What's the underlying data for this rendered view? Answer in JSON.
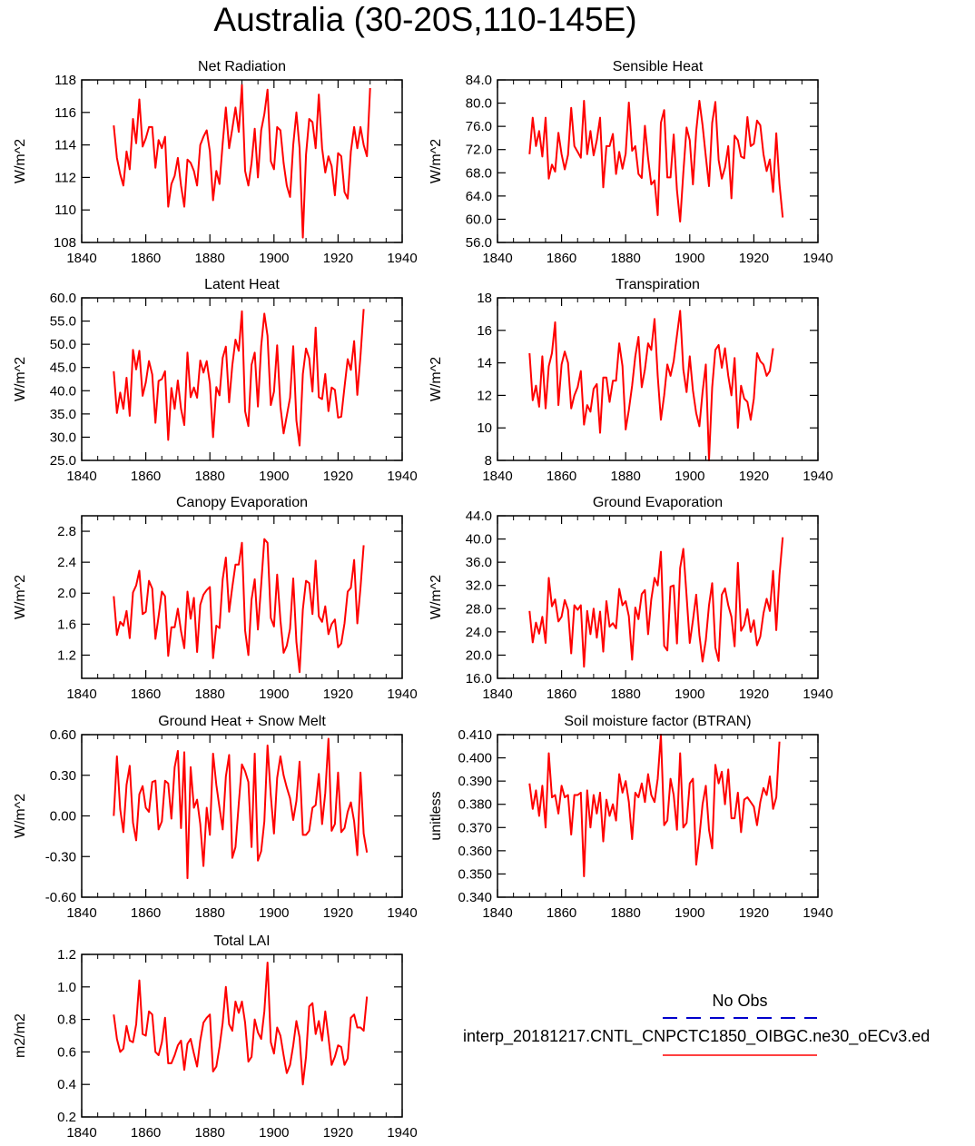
{
  "page_title": "Australia (30-20S,110-145E)",
  "legend": {
    "obs_label": "No Obs",
    "obs_color": "#0000cc",
    "model_label": "interp_20181217.CNTL_CNPCTC1850_OIBGC.ne30_oECv3.ed",
    "model_color": "#ff0000"
  },
  "chart_data": [
    {
      "type": "line",
      "title": "Net Radiation",
      "ylabel": "W/m^2",
      "xlim": [
        1840,
        1940
      ],
      "xticks": [
        1840,
        1860,
        1880,
        1900,
        1920,
        1940
      ],
      "ylim": [
        108,
        118
      ],
      "yticks": [
        "108",
        "110",
        "112",
        "114",
        "116",
        "118"
      ],
      "series": [
        {
          "name": "interp_20181217.CNTL_CNPCTC1850_OIBGC.ne30_oECv3",
          "x_start": 1850,
          "values": [
            115.2,
            113.2,
            112.2,
            111.5,
            113.6,
            112.5,
            115.6,
            114.1,
            116.8,
            113.9,
            114.4,
            115.1,
            115.1,
            112.6,
            114.3,
            113.8,
            114.5,
            110.2,
            111.6,
            112.1,
            113.2,
            111.5,
            110.2,
            113.1,
            112.9,
            112.4,
            111.5,
            114.0,
            114.5,
            114.9,
            113.6,
            110.6,
            112.4,
            111.6,
            114.1,
            116.3,
            113.8,
            115.0,
            116.3,
            114.8,
            117.7,
            112.4,
            111.5,
            112.9,
            115.0,
            112.0,
            114.9,
            115.9,
            117.4,
            113.0,
            112.5,
            115.1,
            114.9,
            112.9,
            111.5,
            110.8,
            114.0,
            116.0,
            113.8,
            108.3,
            113.4,
            115.6,
            115.4,
            113.8,
            117.1,
            113.8,
            112.3,
            113.3,
            112.7,
            110.9,
            113.5,
            113.3,
            111.1,
            110.7,
            113.6,
            115.1,
            113.8,
            115.1,
            114.0,
            113.3,
            117.5
          ]
        }
      ]
    },
    {
      "type": "line",
      "title": "Sensible Heat",
      "ylabel": "W/m^2",
      "xlim": [
        1840,
        1940
      ],
      "xticks": [
        1840,
        1860,
        1880,
        1900,
        1920,
        1940
      ],
      "ylim": [
        56,
        84
      ],
      "yticks": [
        "56.0",
        "60.0",
        "64.0",
        "68.0",
        "72.0",
        "76.0",
        "80.0",
        "84.0"
      ],
      "series": [
        {
          "name": "interp_20181217.CNTL_CNPCTC1850_OIBGC.ne30_oECv3",
          "x_start": 1850,
          "values": [
            71.2,
            77.5,
            72.6,
            75.2,
            70.8,
            77.5,
            67.0,
            69.4,
            68.2,
            74.9,
            71.2,
            68.6,
            71.1,
            79.2,
            72.6,
            71.6,
            70.6,
            80.4,
            71.2,
            75.2,
            71.0,
            73.6,
            77.5,
            65.5,
            72.6,
            72.6,
            74.7,
            67.8,
            71.6,
            68.7,
            71.3,
            80.1,
            71.8,
            72.6,
            67.8,
            67.1,
            76.1,
            70.5,
            66.0,
            66.7,
            60.7,
            76.6,
            78.8,
            67.2,
            67.2,
            74.6,
            65.0,
            59.6,
            68.0,
            75.8,
            73.6,
            66.0,
            75.2,
            80.4,
            76.2,
            70.8,
            65.7,
            76.6,
            80.2,
            70.2,
            67.0,
            68.9,
            72.6,
            63.6,
            74.4,
            73.6,
            70.8,
            70.5,
            77.6,
            72.6,
            73.0,
            77.0,
            76.2,
            71.2,
            68.3,
            70.3,
            64.7,
            74.8,
            66.1,
            60.3
          ]
        }
      ]
    },
    {
      "type": "line",
      "title": "Latent Heat",
      "ylabel": "W/m^2",
      "xlim": [
        1840,
        1940
      ],
      "xticks": [
        1840,
        1860,
        1880,
        1900,
        1920,
        1940
      ],
      "ylim": [
        25,
        60
      ],
      "yticks": [
        "25.0",
        "30.0",
        "35.0",
        "40.0",
        "45.0",
        "50.0",
        "55.0",
        "60.0"
      ],
      "series": [
        {
          "name": "interp_20181217.CNTL_CNPCTC1850_OIBGC.ne30_oECv3",
          "x_start": 1850,
          "values": [
            44.2,
            35.2,
            39.6,
            36.1,
            42.8,
            34.6,
            48.8,
            44.6,
            48.6,
            38.9,
            41.8,
            46.4,
            43.5,
            33.1,
            42.1,
            42.5,
            44.2,
            29.4,
            40.6,
            36.1,
            42.2,
            36.1,
            32.6,
            48.2,
            38.6,
            40.7,
            38.5,
            46.5,
            43.9,
            46.4,
            41.6,
            30.0,
            40.8,
            39.0,
            47.1,
            49.5,
            37.5,
            45.5,
            51.0,
            48.6,
            57.1,
            35.6,
            32.4,
            45.6,
            48.2,
            36.6,
            49.6,
            56.6,
            51.8,
            36.9,
            39.8,
            49.8,
            36.6,
            30.8,
            34.6,
            38.5,
            49.6,
            33.6,
            28.2,
            43.6,
            49.1,
            47.0,
            39.8,
            53.6,
            38.6,
            38.2,
            43.6,
            35.6,
            40.7,
            40.2,
            34.2,
            34.4,
            40.8,
            46.8,
            44.5,
            50.7,
            39.1,
            47.5,
            57.6
          ]
        }
      ]
    },
    {
      "type": "line",
      "title": "Transpiration",
      "ylabel": "W/m^2",
      "xlim": [
        1840,
        1940
      ],
      "xticks": [
        1840,
        1860,
        1880,
        1900,
        1920,
        1940
      ],
      "ylim": [
        8,
        18
      ],
      "yticks": [
        "8",
        "10",
        "12",
        "14",
        "16",
        "18"
      ],
      "series": [
        {
          "name": "interp_20181217.CNTL_CNPCTC1850_OIBGC.ne30_oECv3",
          "x_start": 1850,
          "values": [
            14.6,
            11.7,
            12.6,
            11.3,
            14.4,
            11.2,
            13.8,
            14.6,
            16.5,
            11.4,
            13.9,
            14.7,
            14.0,
            11.2,
            12.0,
            12.5,
            13.5,
            10.2,
            11.4,
            11.0,
            12.4,
            12.7,
            9.7,
            13.1,
            13.1,
            11.6,
            12.9,
            12.9,
            15.2,
            13.8,
            9.9,
            11.1,
            12.6,
            14.4,
            15.6,
            12.5,
            13.6,
            15.2,
            14.8,
            16.7,
            13.2,
            10.5,
            12.0,
            13.9,
            13.2,
            14.1,
            15.7,
            17.2,
            13.6,
            12.2,
            14.4,
            12.3,
            10.9,
            10.1,
            12.2,
            13.9,
            8.0,
            12.5,
            14.8,
            15.1,
            13.7,
            14.9,
            13.2,
            12.0,
            14.3,
            10.0,
            12.6,
            11.8,
            11.6,
            10.5,
            11.8,
            14.6,
            14.1,
            13.9,
            13.2,
            13.5,
            14.9
          ]
        }
      ]
    },
    {
      "type": "line",
      "title": "Canopy Evaporation",
      "ylabel": "W/m^2",
      "xlim": [
        1840,
        1940
      ],
      "xticks": [
        1840,
        1860,
        1880,
        1900,
        1920,
        1940
      ],
      "ylim": [
        0.9,
        3.0
      ],
      "yticks": [
        "1.2",
        "1.6",
        "2.0",
        "2.4",
        "2.8"
      ],
      "series": [
        {
          "name": "interp_20181217.CNTL_CNPCTC1850_OIBGC.ne30_oECv3",
          "x_start": 1850,
          "values": [
            1.96,
            1.46,
            1.63,
            1.58,
            1.77,
            1.42,
            2.01,
            2.1,
            2.29,
            1.73,
            1.76,
            2.16,
            2.06,
            1.41,
            1.7,
            2.02,
            1.96,
            1.19,
            1.56,
            1.56,
            1.8,
            1.51,
            1.29,
            2.02,
            1.67,
            1.94,
            1.24,
            1.85,
            1.98,
            2.04,
            2.08,
            1.16,
            1.58,
            1.55,
            2.18,
            2.46,
            1.76,
            2.08,
            2.37,
            2.37,
            2.65,
            1.52,
            1.2,
            1.92,
            2.18,
            1.53,
            2.11,
            2.7,
            2.65,
            1.68,
            1.57,
            2.24,
            1.65,
            1.23,
            1.32,
            1.54,
            2.19,
            1.37,
            0.98,
            1.79,
            2.16,
            2.13,
            1.73,
            2.42,
            1.7,
            1.63,
            1.83,
            1.47,
            1.6,
            1.66,
            1.3,
            1.35,
            1.61,
            2.02,
            2.07,
            2.43,
            1.61,
            2.07,
            2.62
          ]
        }
      ]
    },
    {
      "type": "line",
      "title": "Ground Evaporation",
      "ylabel": "W/m^2",
      "xlim": [
        1840,
        1940
      ],
      "xticks": [
        1840,
        1860,
        1880,
        1900,
        1920,
        1940
      ],
      "ylim": [
        16,
        44
      ],
      "yticks": [
        "16.0",
        "20.0",
        "24.0",
        "28.0",
        "32.0",
        "36.0",
        "40.0",
        "44.0"
      ],
      "series": [
        {
          "name": "interp_20181217.CNTL_CNPCTC1850_OIBGC.ne30_oECv3",
          "x_start": 1850,
          "values": [
            27.6,
            22.2,
            25.6,
            23.7,
            26.6,
            22.1,
            33.3,
            28.4,
            29.6,
            25.8,
            26.6,
            29.5,
            27.8,
            20.3,
            28.6,
            27.8,
            28.6,
            18.0,
            27.6,
            23.6,
            28.0,
            23.0,
            27.5,
            20.6,
            29.3,
            24.9,
            25.5,
            24.6,
            31.4,
            28.6,
            29.3,
            26.7,
            19.2,
            28.2,
            26.2,
            30.5,
            31.2,
            23.6,
            29.6,
            33.3,
            32.0,
            37.8,
            21.6,
            20.8,
            31.8,
            32.0,
            22.0,
            35.0,
            38.3,
            30.2,
            22.1,
            26.0,
            30.4,
            23.5,
            18.9,
            22.6,
            28.6,
            32.4,
            21.3,
            19.0,
            30.4,
            31.5,
            28.6,
            26.6,
            21.5,
            35.9,
            24.2,
            25.2,
            27.9,
            24.0,
            26.0,
            21.7,
            23.2,
            27.2,
            29.7,
            27.6,
            34.5,
            24.3,
            33.7,
            40.3
          ]
        }
      ]
    },
    {
      "type": "line",
      "title": "Ground Heat + Snow Melt",
      "ylabel": "W/m^2",
      "xlim": [
        1840,
        1940
      ],
      "xticks": [
        1840,
        1860,
        1880,
        1900,
        1920,
        1940
      ],
      "ylim": [
        -0.6,
        0.6
      ],
      "yticks": [
        "-0.60",
        "-0.30",
        "0.00",
        "0.30",
        "0.60"
      ],
      "series": [
        {
          "name": "interp_20181217.CNTL_CNPCTC1850_OIBGC.ne30_oECv3",
          "x_start": 1850,
          "values": [
            0.0,
            0.44,
            0.05,
            -0.12,
            0.23,
            0.37,
            -0.05,
            -0.18,
            0.16,
            0.22,
            0.06,
            0.03,
            0.25,
            0.26,
            -0.1,
            -0.04,
            0.26,
            0.24,
            -0.02,
            0.36,
            0.48,
            -0.09,
            0.47,
            -0.46,
            0.36,
            0.06,
            0.12,
            -0.06,
            -0.37,
            0.06,
            -0.14,
            0.46,
            0.23,
            0.06,
            -0.1,
            0.29,
            0.45,
            -0.31,
            -0.23,
            0.09,
            0.38,
            0.33,
            0.25,
            -0.23,
            0.46,
            -0.33,
            -0.26,
            -0.04,
            0.52,
            0.15,
            -0.13,
            0.28,
            0.44,
            0.3,
            0.21,
            0.13,
            -0.03,
            0.11,
            0.4,
            -0.14,
            -0.14,
            -0.11,
            0.06,
            0.08,
            0.31,
            -0.06,
            0.17,
            0.57,
            -0.11,
            -0.06,
            0.32,
            -0.12,
            -0.09,
            0.03,
            0.1,
            -0.04,
            -0.29,
            0.32,
            -0.13,
            -0.27
          ]
        }
      ]
    },
    {
      "type": "line",
      "title": "Soil moisture factor (BTRAN)",
      "ylabel": "unitless",
      "xlim": [
        1840,
        1940
      ],
      "xticks": [
        1840,
        1860,
        1880,
        1900,
        1920,
        1940
      ],
      "ylim": [
        0.34,
        0.41
      ],
      "yticks": [
        "0.340",
        "0.350",
        "0.360",
        "0.370",
        "0.380",
        "0.390",
        "0.400",
        "0.410"
      ],
      "series": [
        {
          "name": "interp_20181217.CNTL_CNPCTC1850_OIBGC.ne30_oECv3",
          "x_start": 1850,
          "values": [
            0.389,
            0.378,
            0.386,
            0.375,
            0.388,
            0.37,
            0.402,
            0.383,
            0.384,
            0.376,
            0.388,
            0.383,
            0.384,
            0.367,
            0.384,
            0.384,
            0.385,
            0.349,
            0.386,
            0.37,
            0.384,
            0.376,
            0.385,
            0.364,
            0.382,
            0.375,
            0.38,
            0.373,
            0.393,
            0.385,
            0.39,
            0.381,
            0.365,
            0.385,
            0.383,
            0.389,
            0.381,
            0.393,
            0.384,
            0.381,
            0.391,
            0.41,
            0.371,
            0.373,
            0.391,
            0.384,
            0.369,
            0.402,
            0.37,
            0.372,
            0.389,
            0.391,
            0.354,
            0.366,
            0.38,
            0.388,
            0.369,
            0.361,
            0.397,
            0.389,
            0.394,
            0.38,
            0.395,
            0.374,
            0.374,
            0.385,
            0.368,
            0.382,
            0.383,
            0.381,
            0.379,
            0.371,
            0.381,
            0.387,
            0.384,
            0.392,
            0.378,
            0.383,
            0.407
          ]
        }
      ]
    },
    {
      "type": "line",
      "title": "Total LAI",
      "ylabel": "m2/m2",
      "xlim": [
        1840,
        1940
      ],
      "xticks": [
        1840,
        1860,
        1880,
        1900,
        1920,
        1940
      ],
      "ylim": [
        0.2,
        1.2
      ],
      "yticks": [
        "0.2",
        "0.4",
        "0.6",
        "0.8",
        "1.0",
        "1.2"
      ],
      "series": [
        {
          "name": "interp_20181217.CNTL_CNPCTC1850_OIBGC.ne30_oECv3",
          "x_start": 1850,
          "values": [
            0.83,
            0.68,
            0.6,
            0.62,
            0.76,
            0.67,
            0.66,
            0.77,
            1.04,
            0.71,
            0.7,
            0.85,
            0.83,
            0.6,
            0.58,
            0.66,
            0.81,
            0.53,
            0.53,
            0.58,
            0.64,
            0.67,
            0.49,
            0.65,
            0.68,
            0.59,
            0.51,
            0.67,
            0.78,
            0.81,
            0.83,
            0.48,
            0.51,
            0.63,
            0.78,
            1.0,
            0.77,
            0.73,
            0.91,
            0.84,
            0.91,
            0.78,
            0.54,
            0.57,
            0.8,
            0.72,
            0.68,
            0.85,
            1.15,
            0.66,
            0.59,
            0.75,
            0.7,
            0.58,
            0.47,
            0.52,
            0.64,
            0.79,
            0.69,
            0.4,
            0.57,
            0.88,
            0.9,
            0.71,
            0.79,
            0.67,
            0.85,
            0.69,
            0.52,
            0.57,
            0.64,
            0.63,
            0.52,
            0.56,
            0.81,
            0.83,
            0.75,
            0.75,
            0.73,
            0.94
          ]
        }
      ]
    }
  ]
}
